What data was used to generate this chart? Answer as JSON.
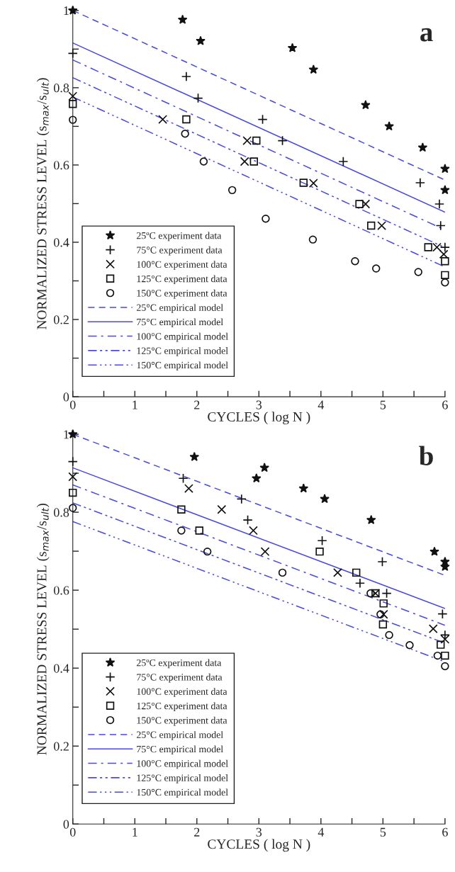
{
  "chart_data": [
    {
      "type": "scatter",
      "xlabel": "CYCLES ( log N )",
      "ylabel": "NORMALIZED STRESS LEVEL (s$_{max}$/s$_{ult}$)",
      "annotations": [
        "a"
      ],
      "xlim": [
        0,
        6
      ],
      "xticks": [
        0,
        {
          "value": 0.5,
          "label": null
        },
        1,
        {
          "value": 1.5,
          "label": null
        },
        2,
        {
          "value": 2.5,
          "label": null
        },
        3,
        {
          "value": 3.5,
          "label": null
        },
        4,
        {
          "value": 4.5,
          "label": null
        },
        5,
        {
          "value": 5.5,
          "label": null
        },
        6
      ],
      "ylim": [
        0,
        1
      ],
      "yticks": [
        0,
        {
          "value": 0.1,
          "label": null
        },
        0.2,
        {
          "value": 0.3,
          "label": null
        },
        0.4,
        {
          "value": 0.5,
          "label": null
        },
        0.6,
        {
          "value": 0.7,
          "label": null
        },
        0.8,
        {
          "value": 0.9,
          "label": null
        },
        1
      ],
      "grid": false,
      "legend": "bottom left",
      "series": [
        {
          "name": "25ºC experiment data",
          "type": "scatter",
          "marker": "star",
          "color": "#111111",
          "x": [
            0,
            1.77,
            2.06,
            3.54,
            3.88,
            4.72,
            5.1,
            5.64,
            6.0,
            6.0
          ],
          "values": [
            1.0,
            0.976,
            0.921,
            0.903,
            0.847,
            0.755,
            0.7,
            0.645,
            0.59,
            0.535
          ]
        },
        {
          "name": "75°C experiment data",
          "type": "scatter",
          "marker": "cross",
          "color": "#111111",
          "x": [
            0,
            1.83,
            2.02,
            3.06,
            3.38,
            4.36,
            5.6,
            5.91,
            5.93,
            6.0
          ],
          "values": [
            0.889,
            0.829,
            0.773,
            0.718,
            0.663,
            0.609,
            0.554,
            0.499,
            0.443,
            0.387
          ]
        },
        {
          "name": "100°C experiment data",
          "type": "scatter",
          "marker": "x",
          "color": "#111111",
          "x": [
            0,
            1.45,
            2.81,
            2.77,
            3.88,
            4.72,
            4.98,
            5.87,
            5.98
          ],
          "values": [
            0.778,
            0.718,
            0.663,
            0.609,
            0.553,
            0.499,
            0.443,
            0.387,
            0.369
          ]
        },
        {
          "name": "125°C experiment data",
          "type": "scatter",
          "marker": "square",
          "color": "#111111",
          "x": [
            0,
            1.83,
            2.96,
            2.92,
            3.72,
            4.62,
            4.81,
            5.73,
            6.0,
            6.0
          ],
          "values": [
            0.758,
            0.718,
            0.663,
            0.609,
            0.554,
            0.499,
            0.443,
            0.387,
            0.351,
            0.315
          ]
        },
        {
          "name": "150°C experiment data",
          "type": "scatter",
          "marker": "circle",
          "color": "#111111",
          "x": [
            0,
            1.81,
            2.11,
            2.57,
            3.11,
            3.87,
            4.55,
            4.89,
            5.57,
            6.0
          ],
          "values": [
            0.717,
            0.681,
            0.609,
            0.535,
            0.461,
            0.407,
            0.351,
            0.332,
            0.323,
            0.296
          ]
        },
        {
          "name": "25°C empirical model",
          "type": "line",
          "line_style": "dashed",
          "color": "#4a4ae0",
          "x": [
            0,
            6
          ],
          "values": [
            1.0,
            0.561
          ]
        },
        {
          "name": "75°C empirical model",
          "type": "line",
          "line_style": "solid",
          "color": "#4a4ae0",
          "x": [
            0,
            6
          ],
          "values": [
            0.916,
            0.478
          ]
        },
        {
          "name": "100°C empirical model",
          "type": "line",
          "line_style": "dashdot",
          "color": "#4a4ae0",
          "x": [
            0,
            6
          ],
          "values": [
            0.872,
            0.432
          ]
        },
        {
          "name": "125°C empirical model",
          "type": "line",
          "line_style": "dashdotdot",
          "color": "#4a4ae0",
          "x": [
            0,
            6
          ],
          "values": [
            0.826,
            0.386
          ]
        },
        {
          "name": "150°C empirical model",
          "type": "line",
          "line_style": "dashdotdotdot",
          "color": "#4a4ae0",
          "x": [
            0,
            6
          ],
          "values": [
            0.776,
            0.336
          ]
        }
      ]
    },
    {
      "type": "scatter",
      "xlabel": "CYCLES ( log N )",
      "ylabel": "NORMALIZED STRESS LEVEL (s$_{max}$/s$_{ult}$)",
      "annotations": [
        "b"
      ],
      "xlim": [
        0,
        6
      ],
      "xticks": [
        0,
        {
          "value": 0.5,
          "label": null
        },
        1,
        {
          "value": 1.5,
          "label": null
        },
        2,
        {
          "value": 2.5,
          "label": null
        },
        3,
        {
          "value": 3.5,
          "label": null
        },
        4,
        {
          "value": 4.5,
          "label": null
        },
        5,
        {
          "value": 5.5,
          "label": null
        },
        6
      ],
      "ylim": [
        0,
        1
      ],
      "yticks": [
        0,
        {
          "value": 0.1,
          "label": null
        },
        0.2,
        {
          "value": 0.3,
          "label": null
        },
        0.4,
        {
          "value": 0.5,
          "label": null
        },
        0.6,
        {
          "value": 0.7,
          "label": null
        },
        0.8,
        {
          "value": 0.9,
          "label": null
        },
        1
      ],
      "grid": false,
      "legend": "bottom left",
      "series": [
        {
          "name": "25ºC experiment data",
          "type": "scatter",
          "marker": "star",
          "color": "#111111",
          "x": [
            0,
            1.96,
            2.96,
            3.09,
            3.72,
            4.06,
            4.81,
            5.83,
            6.0,
            6.0
          ],
          "values": [
            1.0,
            0.942,
            0.887,
            0.914,
            0.861,
            0.834,
            0.78,
            0.699,
            0.673,
            0.66
          ]
        },
        {
          "name": "75°C experiment data",
          "type": "scatter",
          "marker": "cross",
          "color": "#111111",
          "x": [
            0,
            1.78,
            2.72,
            2.82,
            4.02,
            4.99,
            4.63,
            5.06,
            5.96,
            6.0
          ],
          "values": [
            0.93,
            0.887,
            0.834,
            0.78,
            0.727,
            0.673,
            0.618,
            0.592,
            0.539,
            0.485
          ]
        },
        {
          "name": "100°C experiment data",
          "type": "scatter",
          "marker": "x",
          "color": "#111111",
          "x": [
            0,
            1.87,
            2.4,
            2.91,
            3.1,
            4.27,
            4.88,
            5.01,
            5.81,
            6.0
          ],
          "values": [
            0.891,
            0.861,
            0.807,
            0.753,
            0.699,
            0.645,
            0.592,
            0.538,
            0.501,
            0.474
          ]
        },
        {
          "name": "125°C experiment data",
          "type": "scatter",
          "marker": "square",
          "color": "#111111",
          "x": [
            0,
            1.75,
            2.04,
            3.98,
            4.57,
            4.88,
            5.01,
            5.0,
            5.93,
            6.0
          ],
          "values": [
            0.85,
            0.807,
            0.753,
            0.699,
            0.645,
            0.592,
            0.566,
            0.512,
            0.46,
            0.432
          ]
        },
        {
          "name": "150°C experiment data",
          "type": "scatter",
          "marker": "circle",
          "color": "#111111",
          "x": [
            0,
            1.75,
            2.17,
            3.38,
            4.8,
            4.96,
            5.1,
            5.43,
            5.88,
            6.0
          ],
          "values": [
            0.811,
            0.753,
            0.699,
            0.645,
            0.592,
            0.538,
            0.485,
            0.459,
            0.432,
            0.405
          ]
        },
        {
          "name": "25°C empirical model",
          "type": "line",
          "line_style": "dashed",
          "color": "#4a4ae0",
          "x": [
            0,
            6
          ],
          "values": [
            1.0,
            0.638
          ]
        },
        {
          "name": "75°C empirical model",
          "type": "line",
          "line_style": "solid",
          "color": "#4a4ae0",
          "x": [
            0,
            6
          ],
          "values": [
            0.914,
            0.553
          ]
        },
        {
          "name": "100°C empirical model",
          "type": "line",
          "line_style": "dashdot",
          "color": "#4a4ae0",
          "x": [
            0,
            6
          ],
          "values": [
            0.87,
            0.51
          ]
        },
        {
          "name": "125°C empirical model",
          "type": "line",
          "line_style": "dashdotdot",
          "color": "#4a4ae0",
          "x": [
            0,
            6
          ],
          "values": [
            0.824,
            0.464
          ]
        },
        {
          "name": "150°C empirical model",
          "type": "line",
          "line_style": "dashdotdotdot",
          "color": "#4a4ae0",
          "x": [
            0,
            6
          ],
          "values": [
            0.776,
            0.416
          ]
        }
      ]
    }
  ]
}
